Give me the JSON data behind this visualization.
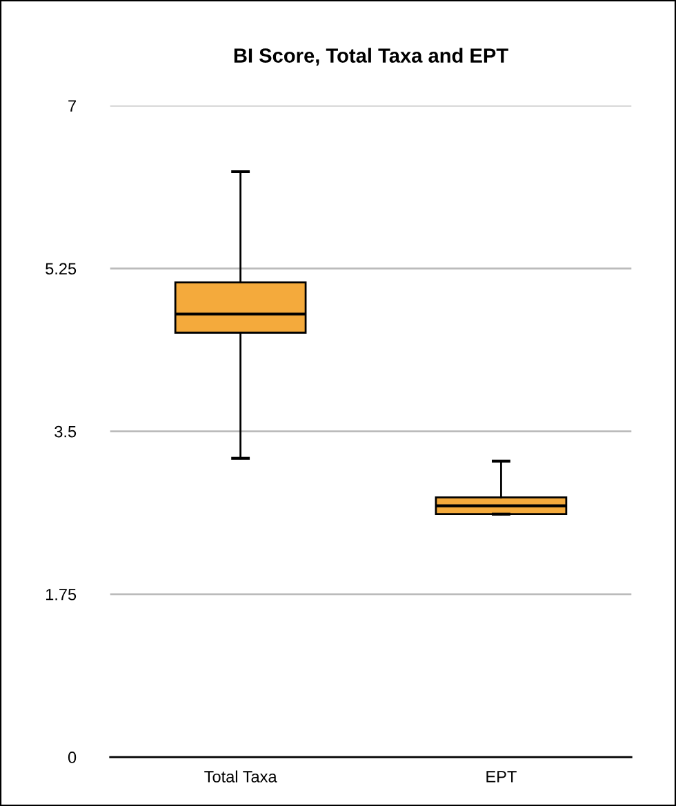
{
  "chart_data": {
    "type": "box",
    "title": "BI Score, Total Taxa and EPT",
    "categories": [
      "Total Taxa",
      "EPT"
    ],
    "boxes": [
      {
        "low": 3.21,
        "q1": 4.56,
        "median": 4.76,
        "q3": 5.1,
        "high": 6.29
      },
      {
        "low": 2.61,
        "q1": 2.61,
        "median": 2.7,
        "q3": 2.79,
        "high": 3.18
      }
    ],
    "color": "#f4aa3c",
    "ylim": [
      0,
      7
    ],
    "yticks": [
      0,
      1.75,
      3.5,
      5.25,
      7
    ],
    "grid": "y"
  }
}
